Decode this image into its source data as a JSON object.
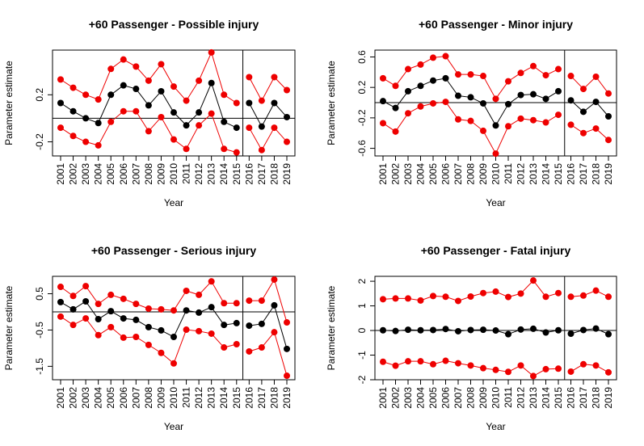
{
  "chart_data": [
    {
      "type": "line",
      "title": "+60 Passenger - Possible injury",
      "x_label": "Year",
      "y_label": "Parameter estimate",
      "categories": [
        "2001",
        "2002",
        "2003",
        "2004",
        "2005",
        "2006",
        "2007",
        "2008",
        "2009",
        "2010",
        "2011",
        "2012",
        "2013",
        "2014",
        "2015",
        "2016",
        "2017",
        "2018",
        "2019"
      ],
      "separator_after": "2015",
      "hline": 0,
      "ylim": [
        -0.32,
        0.58
      ],
      "yticks": [
        -0.2,
        0.2
      ],
      "series": [
        {
          "color": "#ee0000",
          "values": [
            0.33,
            0.26,
            0.2,
            0.16,
            0.42,
            0.5,
            0.44,
            0.32,
            0.46,
            0.27,
            0.15,
            0.32,
            0.56,
            0.2,
            0.13,
            0.35,
            0.15,
            0.35,
            0.24
          ]
        },
        {
          "color": "#000000",
          "values": [
            0.13,
            0.06,
            0,
            -0.04,
            0.2,
            0.28,
            0.25,
            0.11,
            0.23,
            0.05,
            -0.06,
            0.05,
            0.3,
            -0.03,
            -0.08,
            0.13,
            -0.07,
            0.13,
            0.01
          ]
        },
        {
          "color": "#ee0000",
          "values": [
            -0.08,
            -0.15,
            -0.2,
            -0.23,
            -0.03,
            0.06,
            0.06,
            -0.11,
            0.01,
            -0.18,
            -0.26,
            -0.06,
            0.04,
            -0.26,
            -0.29,
            -0.08,
            -0.27,
            -0.08,
            -0.2
          ]
        }
      ]
    },
    {
      "type": "line",
      "title": "+60 Passenger - Minor injury",
      "x_label": "Year",
      "y_label": "Parameter estimate",
      "categories": [
        "2001",
        "2002",
        "2003",
        "2004",
        "2005",
        "2006",
        "2007",
        "2008",
        "2009",
        "2010",
        "2011",
        "2012",
        "2013",
        "2014",
        "2015",
        "2016",
        "2017",
        "2018",
        "2019"
      ],
      "separator_after": "2015",
      "hline": 0,
      "ylim": [
        -0.7,
        0.69
      ],
      "yticks": [
        -0.6,
        -0.2,
        0.2,
        0.6
      ],
      "series": [
        {
          "color": "#ee0000",
          "values": [
            0.32,
            0.22,
            0.44,
            0.5,
            0.59,
            0.61,
            0.37,
            0.37,
            0.35,
            0.05,
            0.28,
            0.39,
            0.48,
            0.36,
            0.44,
            0.35,
            0.18,
            0.34,
            0.12
          ]
        },
        {
          "color": "#000000",
          "values": [
            0.02,
            -0.07,
            0.15,
            0.22,
            0.29,
            0.32,
            0.09,
            0.07,
            -0.01,
            -0.3,
            -0.02,
            0.1,
            0.11,
            0.05,
            0.15,
            0.03,
            -0.12,
            0.01,
            -0.18
          ]
        },
        {
          "color": "#ee0000",
          "values": [
            -0.27,
            -0.38,
            -0.14,
            -0.05,
            -0.01,
            0.01,
            -0.22,
            -0.24,
            -0.37,
            -0.67,
            -0.31,
            -0.21,
            -0.23,
            -0.26,
            -0.16,
            -0.29,
            -0.4,
            -0.34,
            -0.49
          ]
        }
      ]
    },
    {
      "type": "line",
      "title": "+60 Passenger - Serious injury",
      "x_label": "Year",
      "y_label": "Parameter estimate",
      "categories": [
        "2001",
        "2002",
        "2003",
        "2004",
        "2005",
        "2006",
        "2007",
        "2008",
        "2009",
        "2010",
        "2011",
        "2012",
        "2013",
        "2014",
        "2015",
        "2016",
        "2017",
        "2018",
        "2019"
      ],
      "separator_after": "2015",
      "hline": 0,
      "ylim": [
        -1.87,
        0.98
      ],
      "yticks": [
        -1.5,
        -0.5,
        0.5
      ],
      "series": [
        {
          "color": "#ee0000",
          "values": [
            0.69,
            0.44,
            0.71,
            0.22,
            0.47,
            0.36,
            0.22,
            0.09,
            0.07,
            0.04,
            0.58,
            0.47,
            0.84,
            0.24,
            0.24,
            0.31,
            0.31,
            0.89,
            -0.29
          ]
        },
        {
          "color": "#000000",
          "values": [
            0.27,
            0.07,
            0.29,
            -0.2,
            0.02,
            -0.18,
            -0.22,
            -0.42,
            -0.51,
            -0.69,
            0.04,
            -0.02,
            0.13,
            -0.36,
            -0.31,
            -0.38,
            -0.33,
            0.18,
            -1.02
          ]
        },
        {
          "color": "#ee0000",
          "values": [
            -0.13,
            -0.36,
            -0.18,
            -0.64,
            -0.42,
            -0.71,
            -0.69,
            -0.91,
            -1.13,
            -1.42,
            -0.49,
            -0.53,
            -0.6,
            -0.98,
            -0.89,
            -1.09,
            -0.98,
            -0.56,
            -1.76
          ]
        }
      ]
    },
    {
      "type": "line",
      "title": "+60 Passenger - Fatal injury",
      "x_label": "Year",
      "y_label": "Parameter estimate",
      "categories": [
        "2001",
        "2002",
        "2003",
        "2004",
        "2005",
        "2006",
        "2007",
        "2008",
        "2009",
        "2010",
        "2011",
        "2012",
        "2013",
        "2014",
        "2015",
        "2016",
        "2017",
        "2018",
        "2019"
      ],
      "separator_after": "2015",
      "hline": 0,
      "ylim": [
        -2.0,
        2.2
      ],
      "yticks": [
        -2,
        -1,
        0,
        1,
        2
      ],
      "series": [
        {
          "color": "#ee0000",
          "values": [
            1.27,
            1.3,
            1.3,
            1.22,
            1.4,
            1.37,
            1.2,
            1.38,
            1.52,
            1.58,
            1.36,
            1.5,
            2.03,
            1.37,
            1.52,
            1.37,
            1.42,
            1.62,
            1.37
          ]
        },
        {
          "color": "#000000",
          "values": [
            0.01,
            -0.02,
            0.03,
            0.01,
            0.02,
            0.06,
            -0.03,
            0.02,
            0.03,
            0,
            -0.15,
            0.04,
            0.07,
            -0.08,
            0.01,
            -0.13,
            0.02,
            0.08,
            -0.15
          ]
        },
        {
          "color": "#ee0000",
          "values": [
            -1.27,
            -1.43,
            -1.25,
            -1.25,
            -1.37,
            -1.23,
            -1.33,
            -1.42,
            -1.53,
            -1.6,
            -1.68,
            -1.42,
            -1.85,
            -1.57,
            -1.55,
            -1.67,
            -1.37,
            -1.42,
            -1.7
          ]
        }
      ]
    }
  ]
}
